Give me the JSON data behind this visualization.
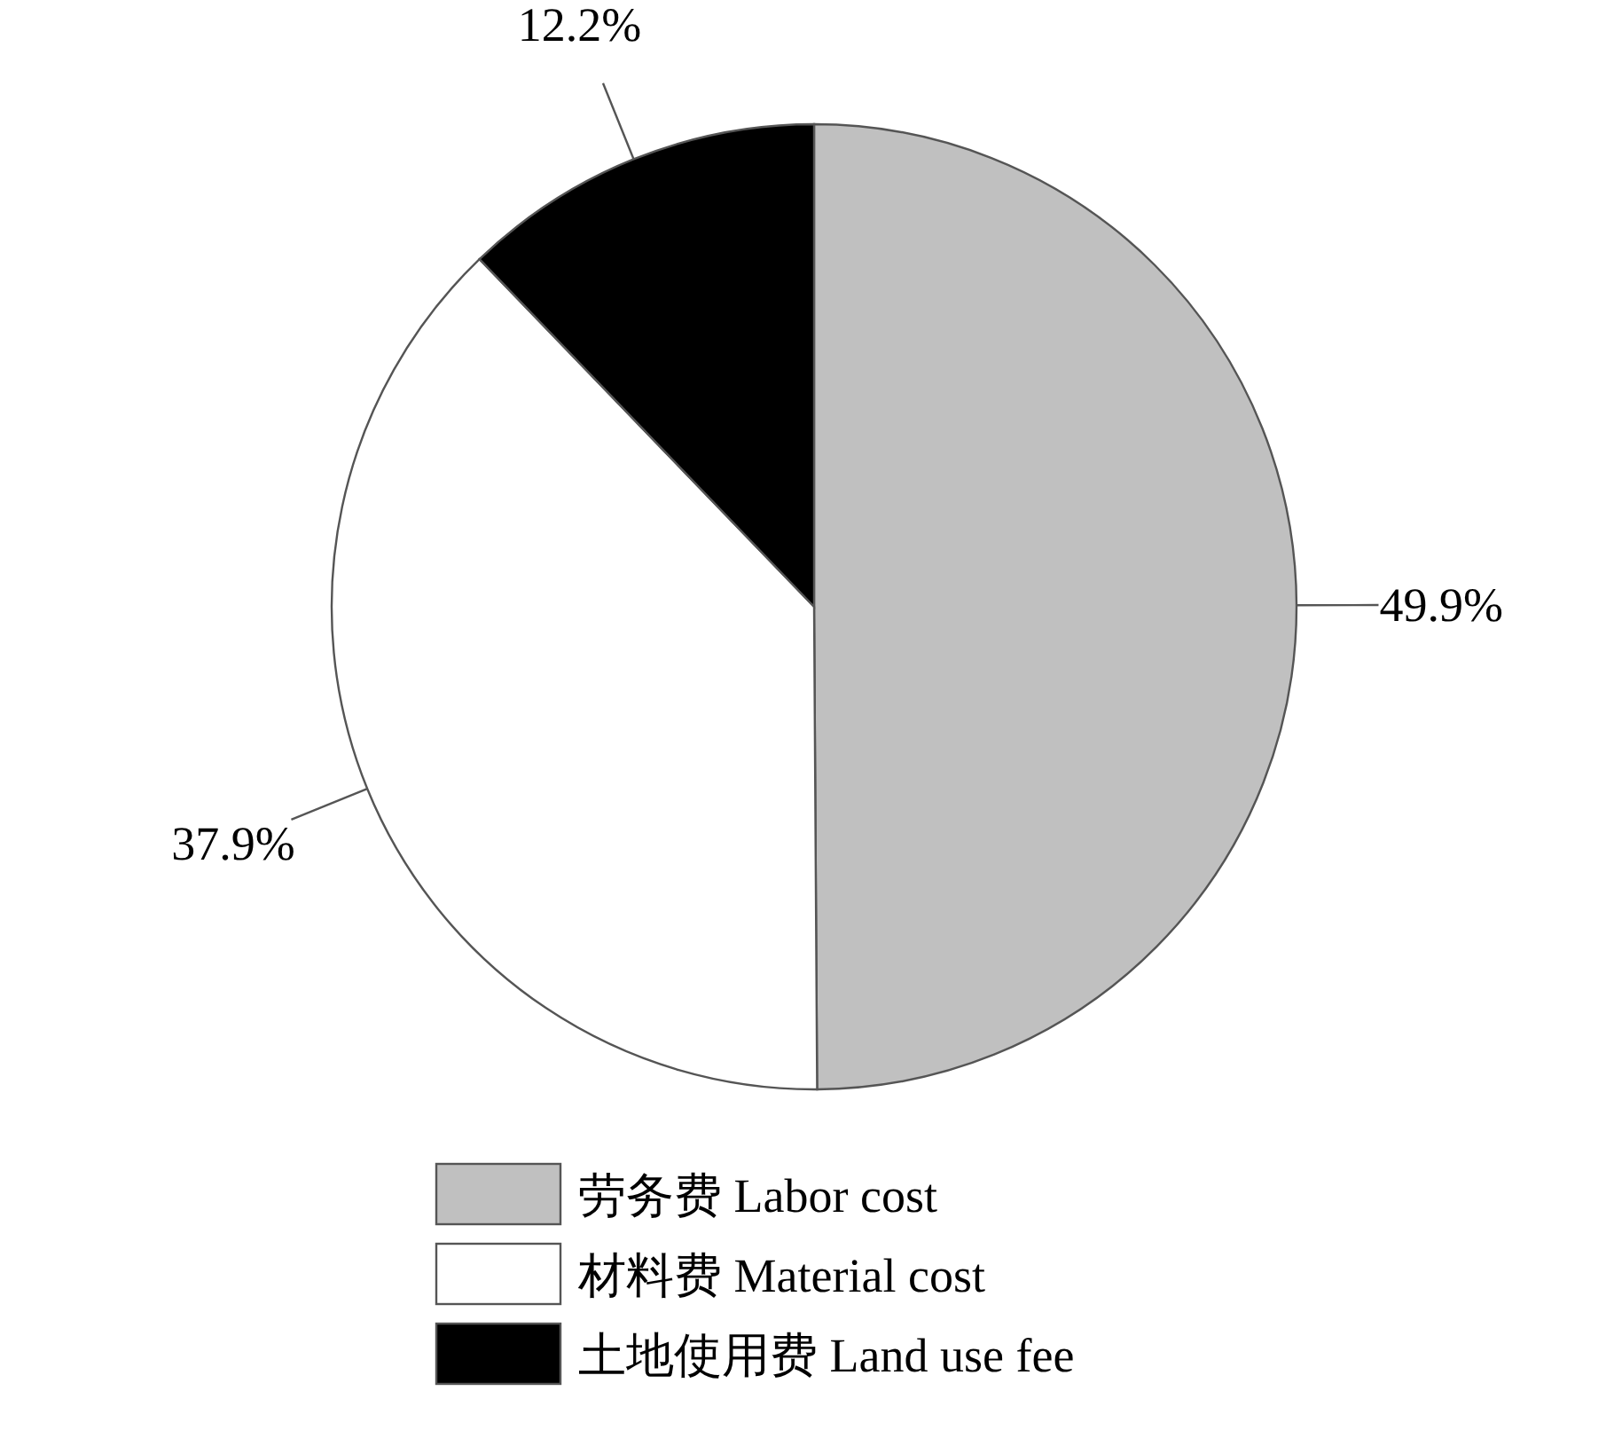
{
  "chart_data": {
    "type": "pie",
    "categories": [
      "劳务费 Labor cost",
      "材料费 Material cost",
      "土地使用费 Land use fee"
    ],
    "values": [
      49.9,
      37.9,
      12.2
    ],
    "colors": [
      "#c0c0c0",
      "#ffffff",
      "#000000"
    ],
    "value_labels": [
      "49.9%",
      "37.9%",
      "12.2%"
    ],
    "legend": "bottom"
  }
}
